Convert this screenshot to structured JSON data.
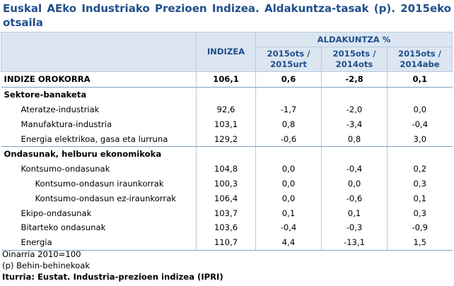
{
  "title": "Euskal AEko Industriako Prezioen Indizea. Aldakuntza-tasak (p). 2015eko otsaila",
  "header": {
    "indizea": "INDIZEA",
    "aldakuntza": "ALDAKUNTZA %",
    "col1": "2015ots / 2015urt",
    "col2": "2015ots / 2014ots",
    "col3": "2015ots / 2014abe"
  },
  "rows": [
    {
      "label": "INDIZE OROKORRA",
      "indizea": "106,1",
      "c1": "0,6",
      "c2": "-2,8",
      "c3": "0,1"
    },
    {
      "label": "Sektore-banaketa",
      "indizea": "",
      "c1": "",
      "c2": "",
      "c3": ""
    },
    {
      "label": "Ateratze-industriak",
      "indizea": "92,6",
      "c1": "-1,7",
      "c2": "-2,0",
      "c3": "0,0"
    },
    {
      "label": "Manufaktura-industria",
      "indizea": "103,1",
      "c1": "0,8",
      "c2": "-3,4",
      "c3": "-0,4"
    },
    {
      "label": "Energia elektrikoa, gasa eta lurruna",
      "indizea": "129,2",
      "c1": "-0,6",
      "c2": "0,8",
      "c3": "3,0"
    },
    {
      "label": "Ondasunak, helburu ekonomikoka",
      "indizea": "",
      "c1": "",
      "c2": "",
      "c3": ""
    },
    {
      "label": "Kontsumo-ondasunak",
      "indizea": "104,8",
      "c1": "0,0",
      "c2": "-0,4",
      "c3": "0,2"
    },
    {
      "label": "Kontsumo-ondasun iraunkorrak",
      "indizea": "100,3",
      "c1": "0,0",
      "c2": "0,0",
      "c3": "0,3"
    },
    {
      "label": "Kontsumo-ondasun ez-iraunkorrak",
      "indizea": "106,4",
      "c1": "0,0",
      "c2": "-0,6",
      "c3": "0,1"
    },
    {
      "label": "Ekipo-ondasunak",
      "indizea": "103,7",
      "c1": "0,1",
      "c2": "0,1",
      "c3": "0,3"
    },
    {
      "label": "Bitarteko ondasunak",
      "indizea": "103,6",
      "c1": "-0,4",
      "c2": "-0,3",
      "c3": "-0,9"
    },
    {
      "label": "Energia",
      "indizea": "110,7",
      "c1": "4,4",
      "c2": "-13,1",
      "c3": "1,5"
    }
  ],
  "notes": {
    "base": "Oinarria 2010=100",
    "provisional": "(p) Behin-behinekoak",
    "source": "Iturria: Eustat. Industria-prezioen indizea (IPRI)"
  }
}
